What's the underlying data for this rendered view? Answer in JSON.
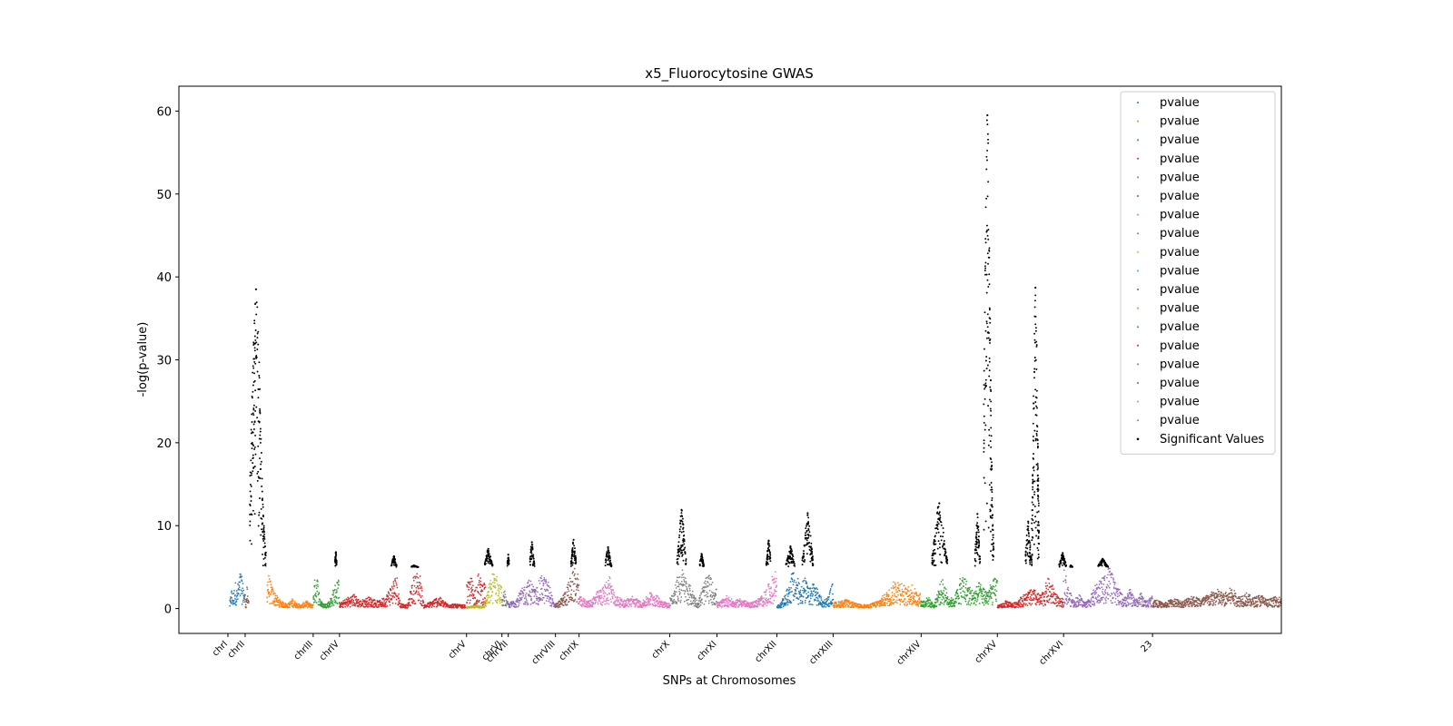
{
  "chart_data": {
    "type": "scatter",
    "title": "x5_Fluorocytosine GWAS",
    "xlabel": "SNPs at Chromosomes",
    "ylabel": "-log(p-value)",
    "ylim": [
      -3,
      63
    ],
    "xlim": [
      0,
      1215
    ],
    "y_ticks": [
      0,
      10,
      20,
      30,
      40,
      50,
      60
    ],
    "grid": false,
    "legend_position": "top-right",
    "x_ticks": [
      {
        "label": "chrI",
        "x": 54
      },
      {
        "label": "chrII",
        "x": 73
      },
      {
        "label": "chrIII",
        "x": 148
      },
      {
        "label": "chrIV",
        "x": 177
      },
      {
        "label": "chrV",
        "x": 317
      },
      {
        "label": "chrVI",
        "x": 356
      },
      {
        "label": "chrVII",
        "x": 363
      },
      {
        "label": "chrVIII",
        "x": 415
      },
      {
        "label": "chrIX",
        "x": 441
      },
      {
        "label": "chrX",
        "x": 541
      },
      {
        "label": "chrXI",
        "x": 593
      },
      {
        "label": "chrXII",
        "x": 659
      },
      {
        "label": "chrXIII",
        "x": 721
      },
      {
        "label": "chrXIV",
        "x": 818
      },
      {
        "label": "chrXV",
        "x": 902
      },
      {
        "label": "chrXVI",
        "x": 975
      },
      {
        "label": "23",
        "x": 1073
      }
    ],
    "legend": [
      {
        "label": "pvalue",
        "color": "#1f77b4"
      },
      {
        "label": "pvalue",
        "color": "#ff7f0e"
      },
      {
        "label": "pvalue",
        "color": "#2ca02c"
      },
      {
        "label": "pvalue",
        "color": "#d62728"
      },
      {
        "label": "pvalue",
        "color": "#9467bd"
      },
      {
        "label": "pvalue",
        "color": "#8c564b"
      },
      {
        "label": "pvalue",
        "color": "#e377c2"
      },
      {
        "label": "pvalue",
        "color": "#7f7f7f"
      },
      {
        "label": "pvalue",
        "color": "#bcbd22"
      },
      {
        "label": "pvalue",
        "color": "#17becf"
      },
      {
        "label": "pvalue",
        "color": "#1f77b4"
      },
      {
        "label": "pvalue",
        "color": "#ff7f0e"
      },
      {
        "label": "pvalue",
        "color": "#2ca02c"
      },
      {
        "label": "pvalue",
        "color": "#d62728"
      },
      {
        "label": "pvalue",
        "color": "#9467bd"
      },
      {
        "label": "pvalue",
        "color": "#8c564b"
      },
      {
        "label": "pvalue",
        "color": "#e377c2"
      },
      {
        "label": "pvalue",
        "color": "#7f7f7f"
      },
      {
        "label": "Significant Values",
        "color": "#000000"
      }
    ],
    "segments": [
      {
        "x": [
          56,
          72
        ],
        "color": "#1f77b4",
        "points": [
          [
            56,
            0.6
          ],
          [
            58,
            2.3
          ],
          [
            60,
            1.4
          ],
          [
            62,
            3.1
          ],
          [
            64,
            2.2
          ],
          [
            66,
            3.4
          ],
          [
            68,
            4.3
          ],
          [
            70,
            3.1
          ],
          [
            72,
            2.6
          ]
        ]
      },
      {
        "x": [
          72,
          77
        ],
        "color": "#8c564b",
        "points": [
          [
            73,
            1.8
          ],
          [
            74,
            0.4
          ],
          [
            75,
            2.7
          ],
          [
            76,
            1.1
          ]
        ]
      },
      {
        "x": [
          97,
          148
        ],
        "color": "#ff7f0e",
        "points": [
          [
            97,
            4.8
          ],
          [
            100,
            3.3
          ],
          [
            103,
            2.4
          ],
          [
            107,
            1.6
          ],
          [
            111,
            1.0
          ],
          [
            115,
            0.7
          ],
          [
            120,
            0.5
          ],
          [
            125,
            1.1
          ],
          [
            130,
            0.6
          ],
          [
            135,
            0.4
          ],
          [
            140,
            0.9
          ],
          [
            145,
            0.5
          ]
        ]
      },
      {
        "x": [
          148,
          177
        ],
        "color": "#2ca02c",
        "points": [
          [
            148,
            2.5
          ],
          [
            152,
            4.2
          ],
          [
            155,
            1.4
          ],
          [
            158,
            0.6
          ],
          [
            162,
            0.5
          ],
          [
            166,
            0.9
          ],
          [
            170,
            2.1
          ],
          [
            174,
            3.2
          ]
        ]
      },
      {
        "x": [
          177,
          316
        ],
        "color": "#d62728",
        "points": [
          [
            177,
            0.5
          ],
          [
            185,
            1.2
          ],
          [
            193,
            1.6
          ],
          [
            200,
            0.9
          ],
          [
            210,
            1.3
          ],
          [
            220,
            0.8
          ],
          [
            228,
            1.4
          ],
          [
            236,
            3.1
          ],
          [
            240,
            3.9
          ],
          [
            244,
            0.6
          ],
          [
            252,
            0.4
          ],
          [
            258,
            3.4
          ],
          [
            262,
            4.1
          ],
          [
            266,
            3.7
          ],
          [
            270,
            0.4
          ],
          [
            278,
            0.8
          ],
          [
            286,
            1.4
          ],
          [
            295,
            0.6
          ],
          [
            305,
            0.5
          ],
          [
            312,
            0.4
          ]
        ]
      },
      {
        "x": [
          317,
          338
        ],
        "color": "#d62728",
        "points": [
          [
            318,
            2.8
          ],
          [
            322,
            3.6
          ],
          [
            326,
            2.2
          ],
          [
            330,
            3.9
          ],
          [
            334,
            3.1
          ],
          [
            338,
            2.6
          ]
        ]
      },
      {
        "x": [
          317,
          356
        ],
        "color": "#bcbd22",
        "points": [
          [
            320,
            0.2
          ],
          [
            328,
            0.4
          ],
          [
            336,
            0.3
          ],
          [
            340,
            1.8
          ],
          [
            344,
            3.6
          ],
          [
            348,
            4.5
          ],
          [
            352,
            3.1
          ],
          [
            356,
            2.4
          ]
        ]
      },
      {
        "x": [
          356,
          363
        ],
        "color": "#7f7f7f",
        "points": [
          [
            357,
            1.1
          ],
          [
            359,
            2.4
          ],
          [
            361,
            0.8
          ]
        ]
      },
      {
        "x": [
          363,
          415
        ],
        "color": "#9467bd",
        "points": [
          [
            364,
            0.6
          ],
          [
            372,
            1.2
          ],
          [
            380,
            2.5
          ],
          [
            387,
            3.3
          ],
          [
            393,
            2.1
          ],
          [
            400,
            3.8
          ],
          [
            408,
            2.9
          ],
          [
            413,
            0.6
          ]
        ]
      },
      {
        "x": [
          415,
          441
        ],
        "color": "#8c564b",
        "points": [
          [
            417,
            0.6
          ],
          [
            422,
            1.2
          ],
          [
            427,
            2.3
          ],
          [
            432,
            3.6
          ],
          [
            436,
            4.4
          ],
          [
            440,
            3.8
          ]
        ]
      },
      {
        "x": [
          441,
          541
        ],
        "color": "#e377c2",
        "points": [
          [
            443,
            1.3
          ],
          [
            452,
            0.8
          ],
          [
            460,
            1.8
          ],
          [
            468,
            2.4
          ],
          [
            475,
            3.9
          ],
          [
            480,
            1.6
          ],
          [
            490,
            0.9
          ],
          [
            500,
            1.4
          ],
          [
            510,
            0.7
          ],
          [
            520,
            1.9
          ],
          [
            530,
            1.2
          ],
          [
            538,
            0.6
          ]
        ]
      },
      {
        "x": [
          541,
          593
        ],
        "color": "#7f7f7f",
        "points": [
          [
            545,
            1.6
          ],
          [
            550,
            3.8
          ],
          [
            555,
            4.4
          ],
          [
            560,
            3.1
          ],
          [
            565,
            2.3
          ],
          [
            572,
            0.7
          ],
          [
            578,
            2.8
          ],
          [
            584,
            3.9
          ],
          [
            588,
            3.0
          ],
          [
            592,
            2.2
          ]
        ]
      },
      {
        "x": [
          593,
          659
        ],
        "color": "#e377c2",
        "points": [
          [
            596,
            0.7
          ],
          [
            604,
            1.5
          ],
          [
            612,
            0.8
          ],
          [
            620,
            1.2
          ],
          [
            628,
            0.6
          ],
          [
            636,
            0.9
          ],
          [
            644,
            1.6
          ],
          [
            652,
            3.1
          ],
          [
            657,
            4.4
          ]
        ]
      },
      {
        "x": [
          659,
          721
        ],
        "color": "#1f77b4",
        "points": [
          [
            662,
            0.4
          ],
          [
            668,
            1.5
          ],
          [
            672,
            2.6
          ],
          [
            676,
            4.2
          ],
          [
            680,
            3.6
          ],
          [
            685,
            2.9
          ],
          [
            690,
            3.4
          ],
          [
            695,
            2.1
          ],
          [
            700,
            3.3
          ],
          [
            705,
            1.8
          ],
          [
            710,
            0.9
          ],
          [
            716,
            1.4
          ],
          [
            720,
            2.8
          ]
        ]
      },
      {
        "x": [
          721,
          818
        ],
        "color": "#ff7f0e",
        "points": [
          [
            723,
            0.7
          ],
          [
            735,
            1.0
          ],
          [
            748,
            0.5
          ],
          [
            760,
            0.4
          ],
          [
            770,
            0.9
          ],
          [
            778,
            1.6
          ],
          [
            785,
            2.4
          ],
          [
            790,
            3.4
          ],
          [
            796,
            3.1
          ],
          [
            802,
            2.2
          ],
          [
            808,
            2.8
          ],
          [
            814,
            1.7
          ]
        ]
      },
      {
        "x": [
          818,
          902
        ],
        "color": "#2ca02c",
        "points": [
          [
            820,
            0.9
          ],
          [
            826,
            1.3
          ],
          [
            832,
            0.4
          ],
          [
            838,
            2.6
          ],
          [
            842,
            3.3
          ],
          [
            848,
            1.4
          ],
          [
            854,
            1.0
          ],
          [
            860,
            3.1
          ],
          [
            865,
            3.9
          ],
          [
            870,
            2.6
          ],
          [
            876,
            2.0
          ],
          [
            882,
            2.9
          ],
          [
            890,
            2.1
          ],
          [
            896,
            2.8
          ],
          [
            900,
            3.6
          ]
        ]
      },
      {
        "x": [
          902,
          975
        ],
        "color": "#d62728",
        "points": [
          [
            905,
            0.4
          ],
          [
            912,
            0.9
          ],
          [
            920,
            0.6
          ],
          [
            928,
            1.3
          ],
          [
            936,
            1.9
          ],
          [
            942,
            2.2
          ],
          [
            950,
            1.4
          ],
          [
            958,
            3.4
          ],
          [
            964,
            2.4
          ],
          [
            970,
            1.1
          ]
        ]
      },
      {
        "x": [
          975,
          1073
        ],
        "color": "#9467bd",
        "points": [
          [
            976,
            4.6
          ],
          [
            980,
            2.4
          ],
          [
            986,
            0.9
          ],
          [
            992,
            1.6
          ],
          [
            998,
            0.7
          ],
          [
            1004,
            1.2
          ],
          [
            1010,
            2.6
          ],
          [
            1016,
            3.2
          ],
          [
            1022,
            4.3
          ],
          [
            1026,
            4.9
          ],
          [
            1030,
            3.2
          ],
          [
            1036,
            2.2
          ],
          [
            1042,
            1.2
          ],
          [
            1048,
            2.2
          ],
          [
            1054,
            1.0
          ],
          [
            1060,
            1.8
          ],
          [
            1066,
            0.8
          ],
          [
            1072,
            1.4
          ]
        ]
      },
      {
        "x": [
          1073,
          1215
        ],
        "color": "#8c564b",
        "points": [
          [
            1076,
            1.0
          ],
          [
            1086,
            0.6
          ],
          [
            1096,
            1.2
          ],
          [
            1106,
            0.8
          ],
          [
            1116,
            1.5
          ],
          [
            1126,
            1.1
          ],
          [
            1136,
            1.7
          ],
          [
            1144,
            2.2
          ],
          [
            1152,
            1.6
          ],
          [
            1160,
            2.4
          ],
          [
            1168,
            1.4
          ],
          [
            1176,
            1.8
          ],
          [
            1184,
            1.2
          ],
          [
            1192,
            1.6
          ],
          [
            1200,
            1.0
          ],
          [
            1208,
            1.3
          ]
        ]
      }
    ],
    "significant_peaks": [
      {
        "x": [
          78,
          96
        ],
        "center": 85,
        "peak": 38.5,
        "base": 5
      },
      {
        "x": [
          172,
          174
        ],
        "center": 173,
        "peak": 6.8,
        "base": 5
      },
      {
        "x": [
          234,
          240
        ],
        "center": 237,
        "peak": 6.3,
        "base": 5
      },
      {
        "x": [
          256,
          264
        ],
        "center": 259,
        "peak": 5.2,
        "base": 5
      },
      {
        "x": [
          337,
          346
        ],
        "center": 341,
        "peak": 7.2,
        "base": 5
      },
      {
        "x": [
          362,
          364
        ],
        "center": 363,
        "peak": 6.5,
        "base": 5
      },
      {
        "x": [
          387,
          392
        ],
        "center": 389,
        "peak": 8.0,
        "base": 5
      },
      {
        "x": [
          432,
          438
        ],
        "center": 435,
        "peak": 8.3,
        "base": 5
      },
      {
        "x": [
          470,
          477
        ],
        "center": 473,
        "peak": 7.4,
        "base": 5
      },
      {
        "x": [
          549,
          559
        ],
        "center": 554,
        "peak": 11.9,
        "base": 5
      },
      {
        "x": [
          574,
          579
        ],
        "center": 576,
        "peak": 6.6,
        "base": 5
      },
      {
        "x": [
          647,
          652
        ],
        "center": 650,
        "peak": 8.2,
        "base": 5
      },
      {
        "x": [
          669,
          679
        ],
        "center": 674,
        "peak": 7.5,
        "base": 5
      },
      {
        "x": [
          687,
          699
        ],
        "center": 693,
        "peak": 11.5,
        "base": 5
      },
      {
        "x": [
          830,
          847
        ],
        "center": 838,
        "peak": 12.7,
        "base": 5
      },
      {
        "x": [
          877,
          883
        ],
        "center": 880,
        "peak": 11.4,
        "base": 5
      },
      {
        "x": [
          887,
          898
        ],
        "center": 891,
        "peak": 59.5,
        "base": 5
      },
      {
        "x": [
          933,
          940
        ],
        "center": 936,
        "peak": 10.5,
        "base": 5
      },
      {
        "x": [
          940,
          948
        ],
        "center": 944,
        "peak": 38.7,
        "base": 5
      },
      {
        "x": [
          970,
          978
        ],
        "center": 974,
        "peak": 6.7,
        "base": 5
      },
      {
        "x": [
          982,
          985
        ],
        "center": 983,
        "peak": 5.2,
        "base": 5
      },
      {
        "x": [
          1013,
          1024
        ],
        "center": 1018,
        "peak": 6.0,
        "base": 5
      }
    ]
  }
}
